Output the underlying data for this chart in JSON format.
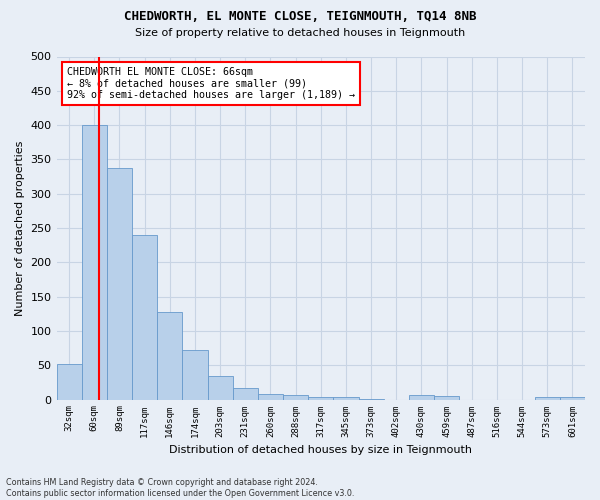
{
  "title": "CHEDWORTH, EL MONTE CLOSE, TEIGNMOUTH, TQ14 8NB",
  "subtitle": "Size of property relative to detached houses in Teignmouth",
  "xlabel": "Distribution of detached houses by size in Teignmouth",
  "ylabel": "Number of detached properties",
  "categories": [
    "32sqm",
    "60sqm",
    "89sqm",
    "117sqm",
    "146sqm",
    "174sqm",
    "203sqm",
    "231sqm",
    "260sqm",
    "288sqm",
    "317sqm",
    "345sqm",
    "373sqm",
    "402sqm",
    "430sqm",
    "459sqm",
    "487sqm",
    "516sqm",
    "544sqm",
    "573sqm",
    "601sqm"
  ],
  "values": [
    52,
    400,
    338,
    240,
    128,
    72,
    35,
    17,
    8,
    7,
    4,
    4,
    1,
    0,
    7,
    5,
    0,
    0,
    0,
    4,
    4
  ],
  "bar_color": "#b8d0ea",
  "bar_edge_color": "#6699cc",
  "grid_color": "#c8d4e4",
  "background_color": "#e8eef6",
  "annotation_text": "CHEDWORTH EL MONTE CLOSE: 66sqm\n← 8% of detached houses are smaller (99)\n92% of semi-detached houses are larger (1,189) →",
  "footer_line1": "Contains HM Land Registry data © Crown copyright and database right 2024.",
  "footer_line2": "Contains public sector information licensed under the Open Government Licence v3.0.",
  "ylim": [
    0,
    500
  ],
  "yticks": [
    0,
    50,
    100,
    150,
    200,
    250,
    300,
    350,
    400,
    450,
    500
  ]
}
